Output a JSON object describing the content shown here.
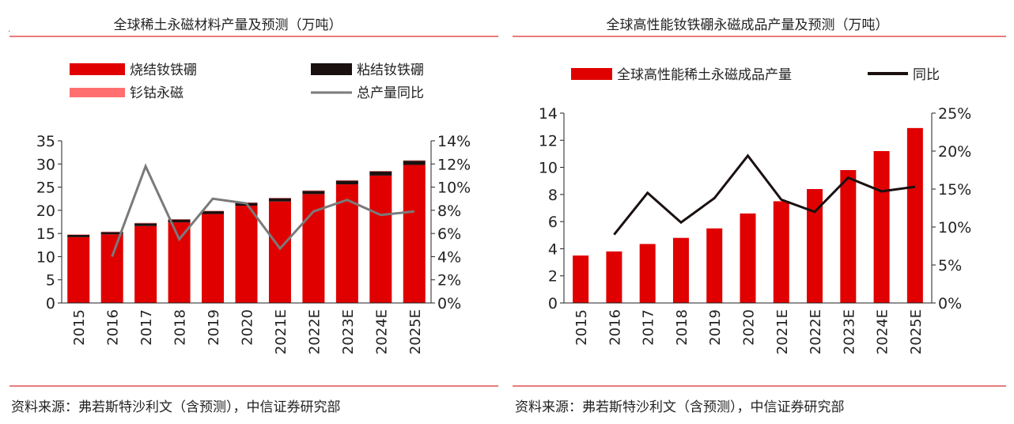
{
  "chart_data": [
    {
      "type": "bar",
      "title": "全球稀土永磁材料产量及预测（万吨）",
      "source": "资料来源：弗若斯特沙利文（含预测），中信证券研究部",
      "categories": [
        "2015",
        "2016",
        "2017",
        "2018",
        "2019",
        "2020",
        "2021E",
        "2022E",
        "2023E",
        "2024E",
        "2025E"
      ],
      "series": [
        {
          "name": "烧结钕铁硼",
          "kind": "bar",
          "stack": "total",
          "axis": "left",
          "color": "#e00000",
          "values": [
            14.2,
            14.8,
            16.6,
            17.4,
            19.2,
            21.0,
            21.9,
            23.5,
            25.6,
            27.5,
            29.8
          ]
        },
        {
          "name": "粘结钕铁硼",
          "kind": "bar",
          "stack": "total",
          "axis": "left",
          "color": "#1a1010",
          "values": [
            0.5,
            0.5,
            0.6,
            0.6,
            0.6,
            0.6,
            0.7,
            0.7,
            0.8,
            0.9,
            0.9
          ]
        },
        {
          "name": "钐钴永磁",
          "kind": "bar",
          "stack": "total",
          "axis": "left",
          "color": "#ff6f6f",
          "values": [
            0.1,
            0.1,
            0.1,
            0.1,
            0.1,
            0.1,
            0.1,
            0.1,
            0.1,
            0.1,
            0.1
          ]
        },
        {
          "name": "总产量同比",
          "kind": "line",
          "axis": "right",
          "color": "#7a7a7a",
          "values": [
            null,
            4.0,
            11.8,
            5.5,
            9.0,
            8.6,
            4.7,
            7.9,
            8.9,
            7.6,
            7.9
          ]
        }
      ],
      "left_axis": {
        "min": 0,
        "max": 35,
        "ticks": [
          "0",
          "5",
          "10",
          "15",
          "20",
          "25",
          "30",
          "35"
        ]
      },
      "right_axis": {
        "min": 0,
        "max": 14,
        "ticks": [
          "0%",
          "2%",
          "4%",
          "6%",
          "8%",
          "10%",
          "12%",
          "14%"
        ]
      },
      "legend_layout": "top, two columns"
    },
    {
      "type": "bar",
      "title": "全球高性能钕铁硼永磁成品产量及预测（万吨）",
      "source": "资料来源：弗若斯特沙利文（含预测），中信证券研究部",
      "categories": [
        "2015",
        "2016",
        "2017",
        "2018",
        "2019",
        "2020",
        "2021E",
        "2022E",
        "2023E",
        "2024E",
        "2025E"
      ],
      "series": [
        {
          "name": "全球高性能稀土永磁成品产量",
          "kind": "bar",
          "axis": "left",
          "color": "#e00000",
          "values": [
            3.5,
            3.8,
            4.35,
            4.8,
            5.5,
            6.6,
            7.5,
            8.4,
            9.8,
            11.2,
            12.9
          ]
        },
        {
          "name": "同比",
          "kind": "line",
          "axis": "right",
          "color": "#1a1010",
          "values": [
            null,
            9.0,
            14.5,
            10.6,
            13.8,
            19.4,
            13.6,
            12.0,
            16.5,
            14.7,
            15.3
          ]
        }
      ],
      "left_axis": {
        "min": 0,
        "max": 14,
        "ticks": [
          "0",
          "2",
          "4",
          "6",
          "8",
          "10",
          "12",
          "14"
        ]
      },
      "right_axis": {
        "min": 0,
        "max": 25,
        "ticks": [
          "0%",
          "5%",
          "10%",
          "15%",
          "20%",
          "25%"
        ]
      },
      "legend_layout": "top, one row"
    }
  ]
}
